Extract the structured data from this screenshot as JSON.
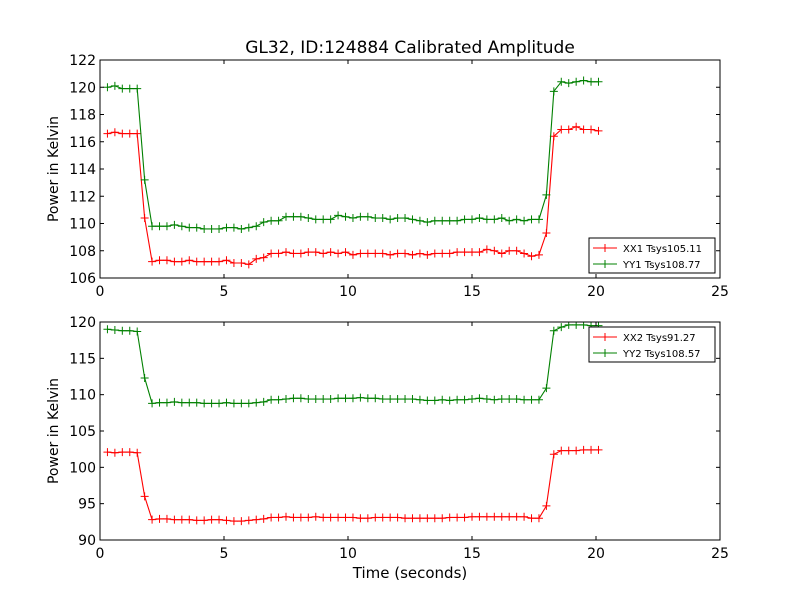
{
  "figure": {
    "title": "GL32, ID:124884 Calibrated Amplitude",
    "xlabel": "Time (seconds)"
  },
  "colors": {
    "red": "#ff0000",
    "green": "#008000"
  },
  "chart_data": [
    {
      "type": "line",
      "ylabel": "Power in Kelvin",
      "xlim": [
        0,
        25
      ],
      "ylim": [
        106,
        122
      ],
      "xticks": [
        0,
        5,
        10,
        15,
        20,
        25
      ],
      "yticks": [
        106,
        108,
        110,
        112,
        114,
        116,
        118,
        120,
        122
      ],
      "grid": false,
      "legend_position": "lower-right",
      "x": [
        0.3,
        0.6,
        0.9,
        1.2,
        1.5,
        1.8,
        2.1,
        2.4,
        2.7,
        3.0,
        3.3,
        3.6,
        3.9,
        4.2,
        4.5,
        4.8,
        5.1,
        5.4,
        5.7,
        6.0,
        6.3,
        6.6,
        6.9,
        7.2,
        7.5,
        7.8,
        8.1,
        8.4,
        8.7,
        9.0,
        9.3,
        9.6,
        9.9,
        10.2,
        10.5,
        10.8,
        11.1,
        11.4,
        11.7,
        12.0,
        12.3,
        12.6,
        12.9,
        13.2,
        13.5,
        13.8,
        14.1,
        14.4,
        14.7,
        15.0,
        15.3,
        15.6,
        15.9,
        16.2,
        16.5,
        16.8,
        17.1,
        17.4,
        17.7,
        18.0,
        18.3,
        18.6,
        18.9,
        19.2,
        19.5,
        19.8,
        20.1
      ],
      "series": [
        {
          "name": "XX1 Tsys105.11",
          "color": "#ff0000",
          "values": [
            116.6,
            116.7,
            116.6,
            116.6,
            116.6,
            110.4,
            107.2,
            107.3,
            107.3,
            107.2,
            107.2,
            107.3,
            107.2,
            107.2,
            107.2,
            107.2,
            107.3,
            107.1,
            107.1,
            107.0,
            107.4,
            107.5,
            107.8,
            107.8,
            107.9,
            107.8,
            107.8,
            107.9,
            107.9,
            107.8,
            107.9,
            107.8,
            107.9,
            107.7,
            107.8,
            107.8,
            107.8,
            107.8,
            107.7,
            107.8,
            107.8,
            107.7,
            107.8,
            107.7,
            107.8,
            107.8,
            107.8,
            107.9,
            107.9,
            107.9,
            107.9,
            108.1,
            108.0,
            107.8,
            108.0,
            108.0,
            107.8,
            107.6,
            107.7,
            109.3,
            116.4,
            116.9,
            116.9,
            117.1,
            116.9,
            116.9,
            116.8
          ]
        },
        {
          "name": "YY1 Tsys108.77",
          "color": "#008000",
          "values": [
            120.0,
            120.1,
            119.9,
            119.9,
            119.9,
            113.2,
            109.8,
            109.8,
            109.8,
            109.9,
            109.8,
            109.7,
            109.7,
            109.6,
            109.6,
            109.6,
            109.7,
            109.7,
            109.6,
            109.7,
            109.8,
            110.1,
            110.2,
            110.2,
            110.5,
            110.5,
            110.5,
            110.4,
            110.3,
            110.3,
            110.3,
            110.6,
            110.5,
            110.4,
            110.5,
            110.5,
            110.4,
            110.4,
            110.3,
            110.4,
            110.4,
            110.3,
            110.2,
            110.1,
            110.2,
            110.2,
            110.2,
            110.2,
            110.3,
            110.3,
            110.4,
            110.3,
            110.3,
            110.4,
            110.2,
            110.3,
            110.2,
            110.3,
            110.3,
            112.1,
            119.7,
            120.4,
            120.3,
            120.4,
            120.5,
            120.4,
            120.4
          ]
        }
      ]
    },
    {
      "type": "line",
      "ylabel": "Power in Kelvin",
      "xlim": [
        0,
        25
      ],
      "ylim": [
        90,
        120
      ],
      "xticks": [
        0,
        5,
        10,
        15,
        20,
        25
      ],
      "yticks": [
        90,
        95,
        100,
        105,
        110,
        115,
        120
      ],
      "grid": false,
      "legend_position": "top-right",
      "x": [
        0.3,
        0.6,
        0.9,
        1.2,
        1.5,
        1.8,
        2.1,
        2.4,
        2.7,
        3.0,
        3.3,
        3.6,
        3.9,
        4.2,
        4.5,
        4.8,
        5.1,
        5.4,
        5.7,
        6.0,
        6.3,
        6.6,
        6.9,
        7.2,
        7.5,
        7.8,
        8.1,
        8.4,
        8.7,
        9.0,
        9.3,
        9.6,
        9.9,
        10.2,
        10.5,
        10.8,
        11.1,
        11.4,
        11.7,
        12.0,
        12.3,
        12.6,
        12.9,
        13.2,
        13.5,
        13.8,
        14.1,
        14.4,
        14.7,
        15.0,
        15.3,
        15.6,
        15.9,
        16.2,
        16.5,
        16.8,
        17.1,
        17.4,
        17.7,
        18.0,
        18.3,
        18.6,
        18.9,
        19.2,
        19.5,
        19.8,
        20.1
      ],
      "series": [
        {
          "name": "XX2 Tsys91.27",
          "color": "#ff0000",
          "values": [
            102.1,
            102.0,
            102.1,
            102.1,
            102.0,
            96.0,
            92.8,
            92.9,
            92.9,
            92.8,
            92.8,
            92.8,
            92.7,
            92.7,
            92.8,
            92.8,
            92.7,
            92.6,
            92.6,
            92.7,
            92.8,
            92.9,
            93.1,
            93.1,
            93.2,
            93.1,
            93.1,
            93.1,
            93.2,
            93.1,
            93.1,
            93.1,
            93.1,
            93.1,
            93.0,
            93.0,
            93.1,
            93.1,
            93.1,
            93.1,
            93.0,
            93.0,
            93.0,
            93.0,
            93.0,
            93.0,
            93.1,
            93.1,
            93.1,
            93.2,
            93.2,
            93.2,
            93.2,
            93.2,
            93.2,
            93.2,
            93.2,
            93.0,
            93.0,
            94.7,
            101.8,
            102.3,
            102.3,
            102.3,
            102.4,
            102.4,
            102.4
          ]
        },
        {
          "name": "YY2 Tsys108.57",
          "color": "#008000",
          "values": [
            119.0,
            118.9,
            118.8,
            118.8,
            118.7,
            112.3,
            108.8,
            108.9,
            108.9,
            109.0,
            108.9,
            108.9,
            108.9,
            108.8,
            108.8,
            108.8,
            108.9,
            108.8,
            108.8,
            108.8,
            108.9,
            109.0,
            109.3,
            109.3,
            109.4,
            109.5,
            109.5,
            109.4,
            109.4,
            109.4,
            109.4,
            109.5,
            109.5,
            109.5,
            109.6,
            109.5,
            109.5,
            109.4,
            109.4,
            109.4,
            109.4,
            109.4,
            109.3,
            109.2,
            109.2,
            109.3,
            109.2,
            109.3,
            109.3,
            109.4,
            109.5,
            109.4,
            109.3,
            109.4,
            109.4,
            109.4,
            109.3,
            109.3,
            109.3,
            110.9,
            118.8,
            119.3,
            119.6,
            119.6,
            119.6,
            119.5,
            119.5
          ]
        }
      ]
    }
  ]
}
